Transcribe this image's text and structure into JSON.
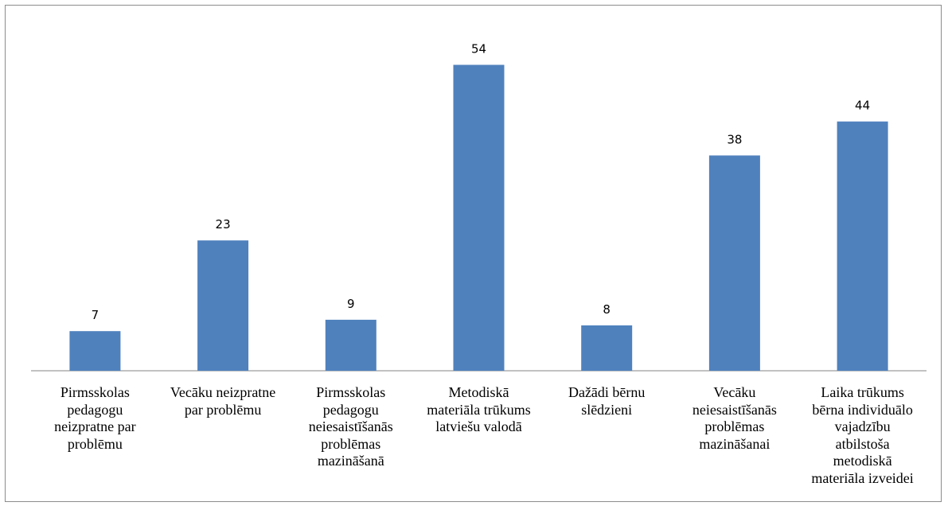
{
  "chart_data": {
    "type": "bar",
    "categories": [
      "Pirmsskolas pedagogu neizpratne par problēmu",
      "Vecāku neizpratne par problēmu",
      "Pirmsskolas pedagogu neiesaistīšanās problēmas mazināšanā",
      "Metodiskā materiāla trūkums latviešu valodā",
      "Dažādi bērnu slēdzieni",
      "Vecāku neiesaistīšanās problēmas mazināšanai",
      "Laika trūkums bērna individuālo vajadzību atbilstoša metodiskā materiāla izveidei"
    ],
    "category_lines": [
      [
        "Pirmsskolas",
        "pedagogu",
        "neizpratne par",
        "problēmu"
      ],
      [
        "Vecāku neizpratne",
        "par problēmu"
      ],
      [
        "Pirmsskolas",
        "pedagogu",
        "neiesaistīšanās",
        "problēmas",
        "mazināšanā"
      ],
      [
        "Metodiskā",
        "materiāla trūkums",
        "latviešu valodā"
      ],
      [
        "Dažādi bērnu",
        "slēdzieni"
      ],
      [
        "Vecāku",
        "neiesaistīšanās",
        "problēmas",
        "mazināšanai"
      ],
      [
        "Laika trūkums",
        "bērna individuālo",
        "vajadzību",
        "atbilstoša",
        "metodiskā",
        "materiāla izveidei"
      ]
    ],
    "values": [
      7,
      23,
      9,
      54,
      8,
      38,
      44
    ],
    "data_labels": [
      "7",
      "23",
      "9",
      "54",
      "8",
      "38",
      "44"
    ],
    "ylim": [
      0,
      60
    ],
    "grid": false,
    "legend": "none",
    "title": "",
    "xlabel": "",
    "ylabel": "",
    "colors": {
      "bar": "#4f81bd",
      "axis": "#868686",
      "border": "#8c8c8c"
    }
  }
}
